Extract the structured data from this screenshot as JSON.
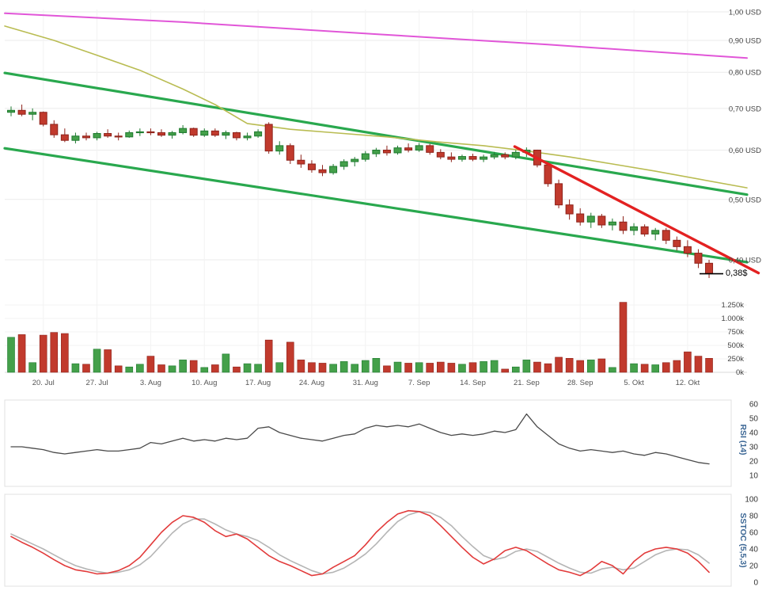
{
  "last_price_label": "0,38$",
  "colors": {
    "background": "#ffffff",
    "grid": "#ebebeb",
    "grid_light": "#f3f3f3",
    "axis_text": "#444444",
    "candle_up": "#44a04a",
    "candle_up_border": "#1e7a2f",
    "candle_down": "#c13a2d",
    "candle_down_border": "#8e231b",
    "channel_green": "#29a84e",
    "trendline_red": "#e32121",
    "line_magenta": "#e156d8",
    "line_olive": "#b9bc52",
    "rsi_line": "#4a4a4a",
    "stoch_red": "#e23b3b",
    "stoch_gray": "#b5b5b5",
    "indicator_label": "#3b6694",
    "panel_border": "#e0e0e0",
    "marker_black": "#000000"
  },
  "chart_data": {
    "type": "candlestick",
    "scale": "log",
    "currency": "USD",
    "price_axis": {
      "labels": [
        "1,00 USD",
        "0,90 USD",
        "0,80 USD",
        "0,70 USD",
        "0,60 USD",
        "0,50 USD",
        "0,40 USD"
      ],
      "values": [
        1.0,
        0.9,
        0.8,
        0.7,
        0.6,
        0.5,
        0.4
      ]
    },
    "volume_axis": {
      "labels": [
        "1.250k",
        "1.000k",
        "750k",
        "500k",
        "250k",
        "0k"
      ],
      "values": [
        1250,
        1000,
        750,
        500,
        250,
        0
      ]
    },
    "week_tick_labels": [
      "20. Jul",
      "27. Jul",
      "3. Aug",
      "10. Aug",
      "17. Aug",
      "24. Aug",
      "31. Aug",
      "7. Sep",
      "14. Sep",
      "21. Sep",
      "28. Sep",
      "5. Okt",
      "12. Okt"
    ],
    "week_tick_indices": [
      3,
      8,
      13,
      18,
      23,
      28,
      33,
      38,
      43,
      48,
      53,
      58,
      63
    ],
    "ohlc": [
      [
        0.69,
        0.705,
        0.68,
        0.695
      ],
      [
        0.695,
        0.71,
        0.68,
        0.685
      ],
      [
        0.685,
        0.7,
        0.67,
        0.69
      ],
      [
        0.69,
        0.692,
        0.655,
        0.66
      ],
      [
        0.66,
        0.67,
        0.628,
        0.635
      ],
      [
        0.635,
        0.65,
        0.618,
        0.622
      ],
      [
        0.622,
        0.64,
        0.615,
        0.632
      ],
      [
        0.632,
        0.64,
        0.622,
        0.628
      ],
      [
        0.628,
        0.642,
        0.622,
        0.638
      ],
      [
        0.638,
        0.648,
        0.628,
        0.632
      ],
      [
        0.632,
        0.64,
        0.622,
        0.63
      ],
      [
        0.63,
        0.645,
        0.628,
        0.64
      ],
      [
        0.64,
        0.65,
        0.632,
        0.642
      ],
      [
        0.642,
        0.65,
        0.634,
        0.64
      ],
      [
        0.64,
        0.648,
        0.63,
        0.634
      ],
      [
        0.634,
        0.644,
        0.626,
        0.64
      ],
      [
        0.64,
        0.658,
        0.636,
        0.65
      ],
      [
        0.65,
        0.652,
        0.63,
        0.634
      ],
      [
        0.634,
        0.65,
        0.63,
        0.644
      ],
      [
        0.644,
        0.65,
        0.63,
        0.634
      ],
      [
        0.634,
        0.645,
        0.625,
        0.64
      ],
      [
        0.64,
        0.642,
        0.622,
        0.628
      ],
      [
        0.628,
        0.64,
        0.622,
        0.632
      ],
      [
        0.632,
        0.648,
        0.628,
        0.642
      ],
      [
        0.66,
        0.665,
        0.592,
        0.598
      ],
      [
        0.598,
        0.62,
        0.59,
        0.61
      ],
      [
        0.61,
        0.615,
        0.57,
        0.578
      ],
      [
        0.578,
        0.59,
        0.562,
        0.57
      ],
      [
        0.57,
        0.578,
        0.552,
        0.558
      ],
      [
        0.558,
        0.568,
        0.545,
        0.552
      ],
      [
        0.552,
        0.57,
        0.548,
        0.565
      ],
      [
        0.565,
        0.58,
        0.558,
        0.575
      ],
      [
        0.575,
        0.585,
        0.565,
        0.58
      ],
      [
        0.58,
        0.598,
        0.575,
        0.592
      ],
      [
        0.592,
        0.605,
        0.585,
        0.6
      ],
      [
        0.6,
        0.61,
        0.588,
        0.594
      ],
      [
        0.594,
        0.61,
        0.59,
        0.605
      ],
      [
        0.605,
        0.615,
        0.595,
        0.6
      ],
      [
        0.6,
        0.616,
        0.596,
        0.61
      ],
      [
        0.61,
        0.614,
        0.59,
        0.595
      ],
      [
        0.595,
        0.602,
        0.58,
        0.585
      ],
      [
        0.585,
        0.595,
        0.574,
        0.58
      ],
      [
        0.58,
        0.59,
        0.575,
        0.586
      ],
      [
        0.586,
        0.592,
        0.576,
        0.58
      ],
      [
        0.58,
        0.59,
        0.574,
        0.585
      ],
      [
        0.585,
        0.596,
        0.58,
        0.59
      ],
      [
        0.59,
        0.595,
        0.58,
        0.585
      ],
      [
        0.585,
        0.6,
        0.58,
        0.595
      ],
      [
        0.595,
        0.606,
        0.585,
        0.6
      ],
      [
        0.6,
        0.601,
        0.563,
        0.568
      ],
      [
        0.568,
        0.574,
        0.524,
        0.53
      ],
      [
        0.53,
        0.538,
        0.484,
        0.49
      ],
      [
        0.49,
        0.5,
        0.464,
        0.474
      ],
      [
        0.474,
        0.484,
        0.454,
        0.46
      ],
      [
        0.46,
        0.476,
        0.45,
        0.47
      ],
      [
        0.47,
        0.474,
        0.45,
        0.455
      ],
      [
        0.455,
        0.466,
        0.446,
        0.46
      ],
      [
        0.46,
        0.47,
        0.44,
        0.446
      ],
      [
        0.446,
        0.458,
        0.438,
        0.452
      ],
      [
        0.452,
        0.456,
        0.436,
        0.44
      ],
      [
        0.44,
        0.45,
        0.43,
        0.446
      ],
      [
        0.446,
        0.45,
        0.424,
        0.43
      ],
      [
        0.43,
        0.436,
        0.414,
        0.42
      ],
      [
        0.42,
        0.43,
        0.404,
        0.41
      ],
      [
        0.41,
        0.416,
        0.388,
        0.395
      ],
      [
        0.395,
        0.4,
        0.374,
        0.38
      ]
    ],
    "volume_k": [
      650,
      700,
      180,
      690,
      740,
      720,
      160,
      150,
      430,
      420,
      120,
      100,
      150,
      300,
      140,
      120,
      230,
      220,
      90,
      140,
      340,
      100,
      160,
      150,
      600,
      180,
      560,
      230,
      180,
      170,
      150,
      200,
      150,
      220,
      260,
      120,
      190,
      170,
      180,
      170,
      190,
      170,
      150,
      180,
      200,
      220,
      60,
      100,
      230,
      190,
      160,
      280,
      260,
      220,
      230,
      250,
      90,
      1300,
      160,
      150,
      140,
      180,
      220,
      380,
      300,
      260
    ],
    "last_price": 0.38,
    "overlays": {
      "magenta_resistance": {
        "points": [
          [
            -0.59,
            0.995
          ],
          [
            16,
            0.963
          ],
          [
            34,
            0.921
          ],
          [
            50,
            0.886
          ],
          [
            68.53,
            0.843
          ]
        ]
      },
      "olive_moving_average": {
        "points": [
          [
            -0.59,
            0.949
          ],
          [
            4,
            0.9
          ],
          [
            8,
            0.852
          ],
          [
            12,
            0.806
          ],
          [
            16,
            0.752
          ],
          [
            19,
            0.71
          ],
          [
            22,
            0.662
          ],
          [
            26,
            0.648
          ],
          [
            30,
            0.64
          ],
          [
            35,
            0.63
          ],
          [
            40,
            0.618
          ],
          [
            44,
            0.61
          ],
          [
            48,
            0.598
          ],
          [
            52,
            0.585
          ],
          [
            56,
            0.57
          ],
          [
            60,
            0.555
          ],
          [
            68.53,
            0.522
          ]
        ]
      },
      "channel_upper_green": {
        "points": [
          [
            -0.59,
            0.798
          ],
          [
            68.53,
            0.509
          ]
        ]
      },
      "channel_lower_green": {
        "points": [
          [
            -0.59,
            0.604
          ],
          [
            68.53,
            0.3965
          ]
        ]
      },
      "trendline_red": {
        "points": [
          [
            46.9,
            0.608
          ],
          [
            69.6,
            0.381
          ]
        ]
      }
    },
    "indicators": {
      "rsi": {
        "label": "RSI (14)",
        "axis": [
          60,
          50,
          40,
          30,
          20,
          10
        ],
        "values": [
          30,
          30,
          29,
          28,
          26,
          25,
          26,
          27,
          28,
          27,
          27,
          28,
          29,
          33,
          32,
          34,
          36,
          34,
          35,
          34,
          36,
          35,
          36,
          43,
          44,
          40,
          38,
          36,
          35,
          34,
          36,
          38,
          39,
          43,
          45,
          44,
          45,
          44,
          46,
          43,
          40,
          38,
          39,
          38,
          39,
          41,
          40,
          42,
          53,
          44,
          38,
          32,
          29,
          27,
          28,
          27,
          26,
          27,
          25,
          24,
          26,
          25,
          23,
          21,
          19,
          18
        ]
      },
      "sstoc": {
        "label": "SSTOC (5,5,3)",
        "axis": [
          100,
          80,
          60,
          40,
          20,
          0
        ],
        "red": [
          55,
          48,
          42,
          35,
          27,
          20,
          15,
          13,
          10,
          11,
          14,
          20,
          30,
          45,
          60,
          72,
          80,
          78,
          72,
          62,
          55,
          58,
          52,
          42,
          32,
          25,
          20,
          14,
          8,
          10,
          18,
          25,
          32,
          45,
          60,
          72,
          82,
          86,
          85,
          80,
          68,
          55,
          42,
          30,
          22,
          28,
          38,
          42,
          38,
          30,
          22,
          15,
          12,
          8,
          15,
          25,
          20,
          10,
          25,
          35,
          40,
          42,
          40,
          35,
          25,
          12
        ],
        "gray": [
          58,
          52,
          46,
          40,
          33,
          26,
          20,
          16,
          13,
          11,
          12,
          15,
          21,
          31,
          45,
          59,
          70,
          76,
          76,
          70,
          63,
          58,
          55,
          50,
          42,
          33,
          26,
          20,
          14,
          10,
          12,
          17,
          25,
          34,
          46,
          60,
          73,
          81,
          85,
          84,
          78,
          68,
          55,
          43,
          32,
          27,
          30,
          37,
          40,
          37,
          30,
          23,
          17,
          12,
          11,
          16,
          18,
          15,
          17,
          25,
          33,
          38,
          40,
          39,
          33,
          23
        ]
      }
    }
  }
}
